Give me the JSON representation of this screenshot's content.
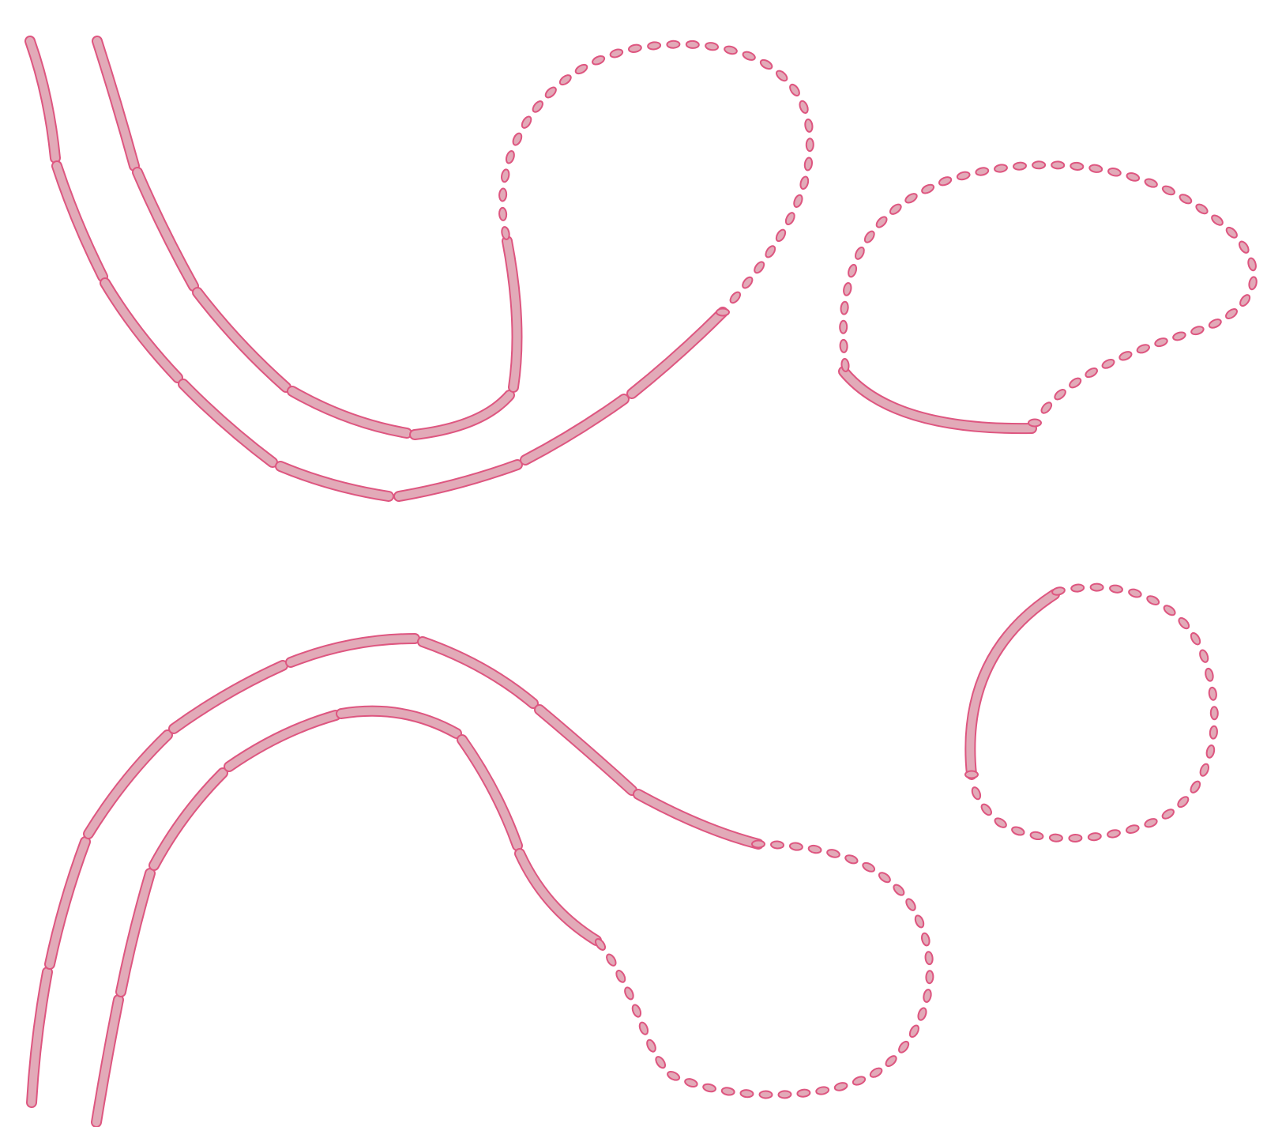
{
  "figure": {
    "stroke_color": "#de5680",
    "fill_color": "#e2aab8",
    "background": "#ffffff",
    "motifs": [
      {
        "name": "upper-left-looped-strand",
        "segmented_strands": 2,
        "dotted_loop": true
      },
      {
        "name": "upper-right-open-loop",
        "segmented_strands": 1,
        "dotted_loop": true
      },
      {
        "name": "lower-left-looped-strand",
        "segmented_strands": 2,
        "dotted_loop": true
      },
      {
        "name": "lower-right-ring",
        "segmented_strands": 1,
        "dotted_loop": true
      }
    ]
  }
}
